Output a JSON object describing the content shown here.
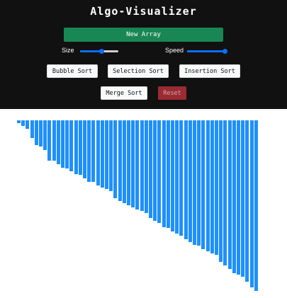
{
  "app": {
    "title": "Algo-Visualizer"
  },
  "controls": {
    "new_array_label": "New Array",
    "size_label": "Size",
    "speed_label": "Speed",
    "size_value": 0.55,
    "speed_value": 1.0
  },
  "sort_buttons": {
    "bubble": "Bubble Sort",
    "selection": "Selection Sort",
    "insertion": "Insertion Sort",
    "merge": "Merge Sort",
    "reset": "Reset"
  },
  "colors": {
    "header_bg": "#111111",
    "primary_green": "#198754",
    "slider_blue": "#0d6efd",
    "reset_red": "#9a2b33",
    "bar_blue": "#1e90ff"
  },
  "array": {
    "bar_color": "#1e90ff",
    "values": [
      4,
      8,
      12,
      25,
      35,
      37,
      42,
      57,
      57,
      62,
      67,
      68,
      72,
      76,
      77,
      82,
      87,
      87,
      92,
      95,
      97,
      100,
      110,
      114,
      117,
      120,
      123,
      126,
      128,
      131,
      138,
      142,
      145,
      151,
      152,
      157,
      160,
      163,
      168,
      172,
      176,
      177,
      182,
      185,
      188,
      190,
      200,
      205,
      210,
      216,
      218,
      221,
      228,
      236,
      241
    ]
  }
}
